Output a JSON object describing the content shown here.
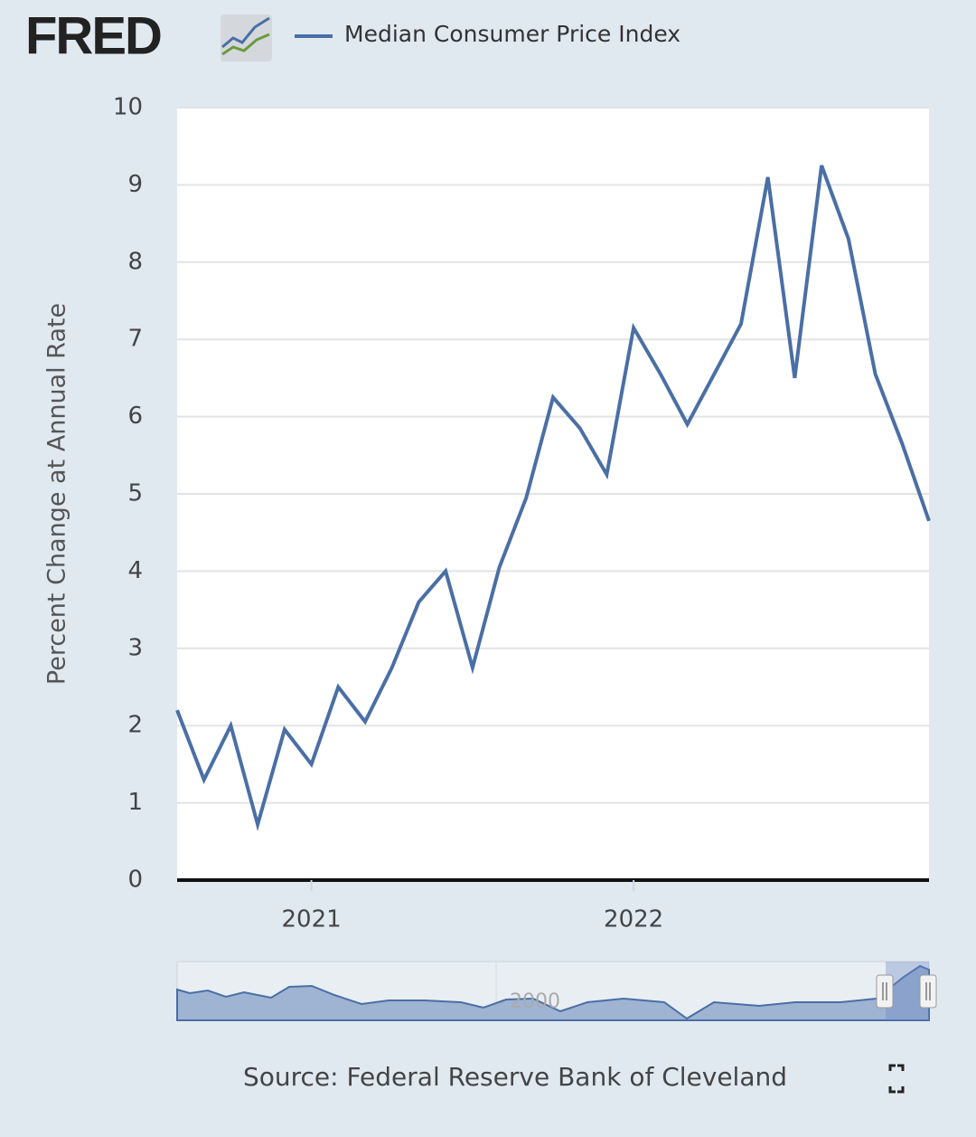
{
  "header": {
    "logo": "FRED"
  },
  "chart_data": {
    "type": "line",
    "y_label": "Percent Change at Annual Rate",
    "source": "Source: Federal Reserve Bank of Cleveland",
    "navigator_label": "2000",
    "x": [
      "2020-08",
      "2020-09",
      "2020-10",
      "2020-11",
      "2020-12",
      "2021-01",
      "2021-02",
      "2021-03",
      "2021-04",
      "2021-05",
      "2021-06",
      "2021-07",
      "2021-08",
      "2021-09",
      "2021-10",
      "2021-11",
      "2021-12",
      "2022-01",
      "2022-02",
      "2022-03",
      "2022-04",
      "2022-05",
      "2022-06",
      "2022-07",
      "2022-08",
      "2022-09",
      "2022-10",
      "2022-11",
      "2022-12"
    ],
    "series": [
      {
        "name": "Median Consumer Price Index",
        "color": "#4a6fa5",
        "values": [
          2.2,
          1.3,
          2.0,
          0.72,
          1.95,
          1.5,
          2.5,
          2.05,
          2.75,
          3.6,
          4.0,
          2.75,
          4.05,
          4.95,
          6.25,
          5.85,
          5.25,
          7.15,
          6.55,
          5.9,
          6.55,
          7.2,
          9.1,
          6.5,
          9.25,
          8.3,
          6.55,
          5.65,
          4.65
        ]
      }
    ],
    "xlim": [
      "2020-08",
      "2022-12"
    ],
    "xticks": [
      {
        "value": "2021-01",
        "label": "2021"
      },
      {
        "value": "2022-01",
        "label": "2022"
      }
    ],
    "ylim": [
      0,
      10
    ],
    "yticks": [
      0,
      1,
      2,
      3,
      4,
      5,
      6,
      7,
      8,
      9,
      10
    ],
    "grid": true
  }
}
